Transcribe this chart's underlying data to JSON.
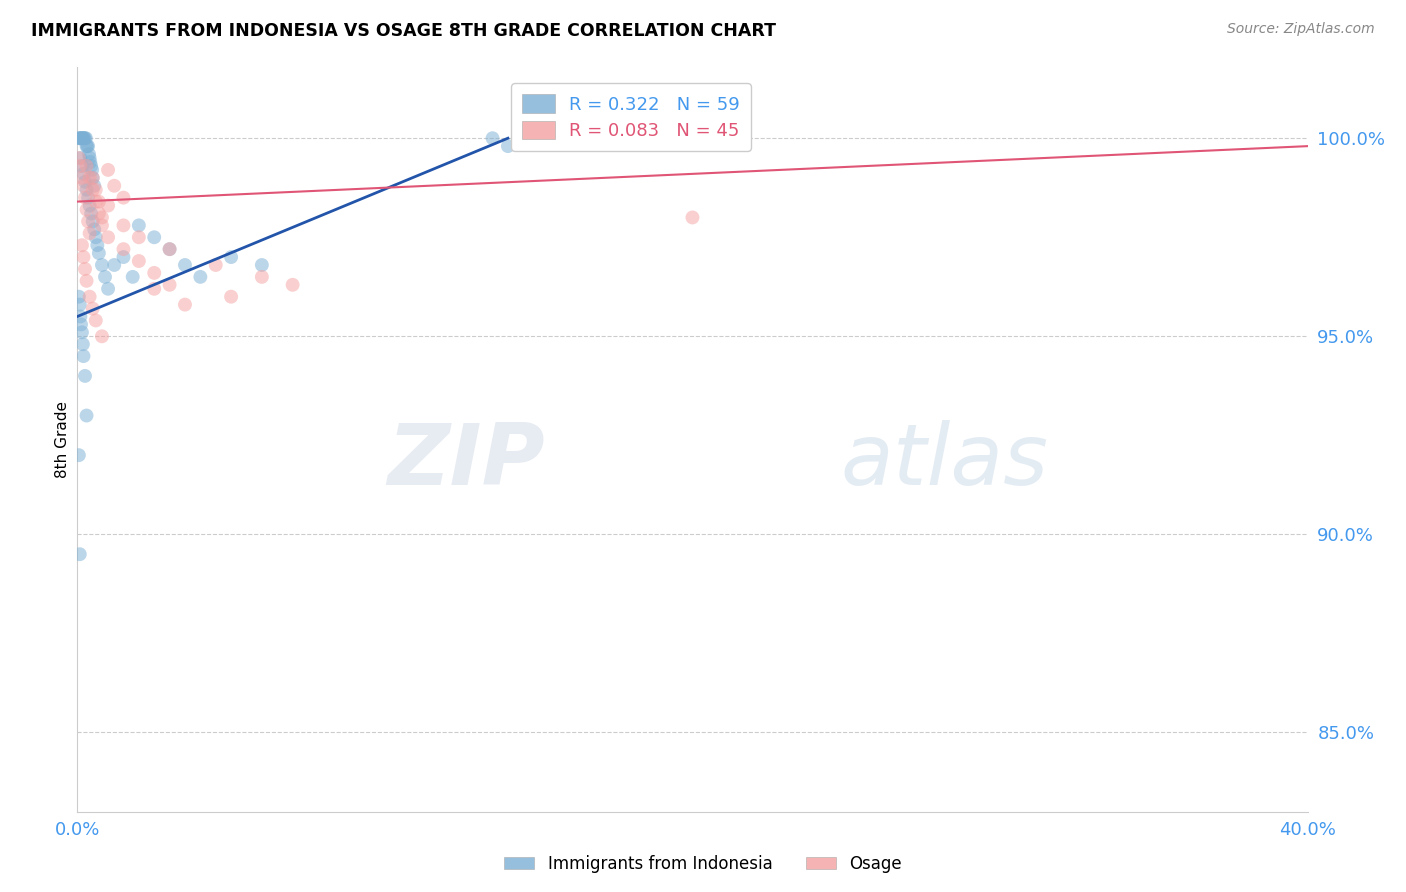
{
  "title": "IMMIGRANTS FROM INDONESIA VS OSAGE 8TH GRADE CORRELATION CHART",
  "source": "Source: ZipAtlas.com",
  "ylabel": "8th Grade",
  "yticks": [
    85.0,
    90.0,
    95.0,
    100.0
  ],
  "ytick_labels": [
    "85.0%",
    "90.0%",
    "95.0%",
    "100.0%"
  ],
  "xlim": [
    0.0,
    40.0
  ],
  "ylim": [
    83.0,
    101.8
  ],
  "legend_blue_r": "0.322",
  "legend_blue_n": "59",
  "legend_pink_r": "0.083",
  "legend_pink_n": "45",
  "blue_color": "#7BAFD4",
  "pink_color": "#F4A0A0",
  "line_blue": "#2255AA",
  "line_pink": "#E05575",
  "axis_color": "#4499EE",
  "blue_scatter_x": [
    0.05,
    0.08,
    0.1,
    0.12,
    0.15,
    0.18,
    0.2,
    0.22,
    0.25,
    0.28,
    0.3,
    0.32,
    0.35,
    0.38,
    0.4,
    0.42,
    0.45,
    0.48,
    0.5,
    0.55,
    0.1,
    0.15,
    0.2,
    0.25,
    0.3,
    0.35,
    0.4,
    0.45,
    0.5,
    0.55,
    0.6,
    0.65,
    0.7,
    0.8,
    0.9,
    1.0,
    1.2,
    1.5,
    1.8,
    2.0,
    2.5,
    3.0,
    3.5,
    4.0,
    5.0,
    6.0,
    0.05,
    0.08,
    0.1,
    0.12,
    0.15,
    0.18,
    0.2,
    0.25,
    0.3,
    13.5,
    14.0,
    0.05,
    0.08
  ],
  "blue_scatter_y": [
    100.0,
    100.0,
    100.0,
    100.0,
    100.0,
    100.0,
    100.0,
    100.0,
    100.0,
    100.0,
    99.8,
    99.8,
    99.8,
    99.6,
    99.5,
    99.4,
    99.3,
    99.2,
    99.0,
    98.8,
    99.5,
    99.3,
    99.1,
    98.9,
    98.7,
    98.5,
    98.3,
    98.1,
    97.9,
    97.7,
    97.5,
    97.3,
    97.1,
    96.8,
    96.5,
    96.2,
    96.8,
    97.0,
    96.5,
    97.8,
    97.5,
    97.2,
    96.8,
    96.5,
    97.0,
    96.8,
    96.0,
    95.8,
    95.5,
    95.3,
    95.1,
    94.8,
    94.5,
    94.0,
    93.0,
    100.0,
    99.8,
    92.0,
    89.5
  ],
  "pink_scatter_x": [
    0.05,
    0.1,
    0.15,
    0.2,
    0.25,
    0.3,
    0.35,
    0.4,
    0.5,
    0.6,
    0.7,
    0.8,
    1.0,
    1.2,
    1.5,
    0.15,
    0.2,
    0.25,
    0.3,
    0.4,
    0.5,
    0.6,
    0.8,
    1.0,
    1.5,
    2.0,
    3.0,
    4.5,
    6.0,
    2.5,
    3.5,
    5.0,
    7.0,
    20.0,
    0.3,
    0.4,
    0.5,
    0.6,
    0.7,
    0.8,
    1.0,
    1.5,
    2.0,
    2.5,
    3.0
  ],
  "pink_scatter_y": [
    99.5,
    99.3,
    99.0,
    98.8,
    98.5,
    98.2,
    97.9,
    97.6,
    99.0,
    98.7,
    98.4,
    98.0,
    99.2,
    98.8,
    98.5,
    97.3,
    97.0,
    96.7,
    96.4,
    96.0,
    95.7,
    95.4,
    95.0,
    98.3,
    97.8,
    97.5,
    97.2,
    96.8,
    96.5,
    96.2,
    95.8,
    96.0,
    96.3,
    98.0,
    99.3,
    99.0,
    98.7,
    98.4,
    98.1,
    97.8,
    97.5,
    97.2,
    96.9,
    96.6,
    96.3
  ]
}
